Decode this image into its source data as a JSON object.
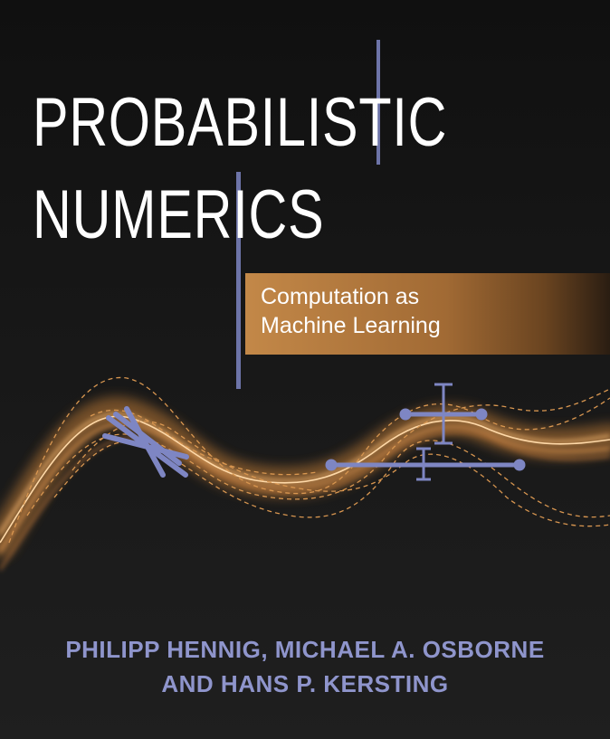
{
  "title": {
    "line1": "PROBABILISTIC",
    "line2": "NUMERICS"
  },
  "subtitle": {
    "line1": "Computation as",
    "line2": "Machine Learning"
  },
  "authors": {
    "line1": "PHILIPP HENNIG, MICHAEL A. OSBORNE",
    "line2": "AND HANS P. KERSTING"
  },
  "colors": {
    "background": "#1b1b1b",
    "title_text": "#ffffff",
    "accent_bars": "#6d74a8",
    "subtitle_band": "#c38848",
    "curves": "#e8a560",
    "author_text": "#8f95cc"
  }
}
